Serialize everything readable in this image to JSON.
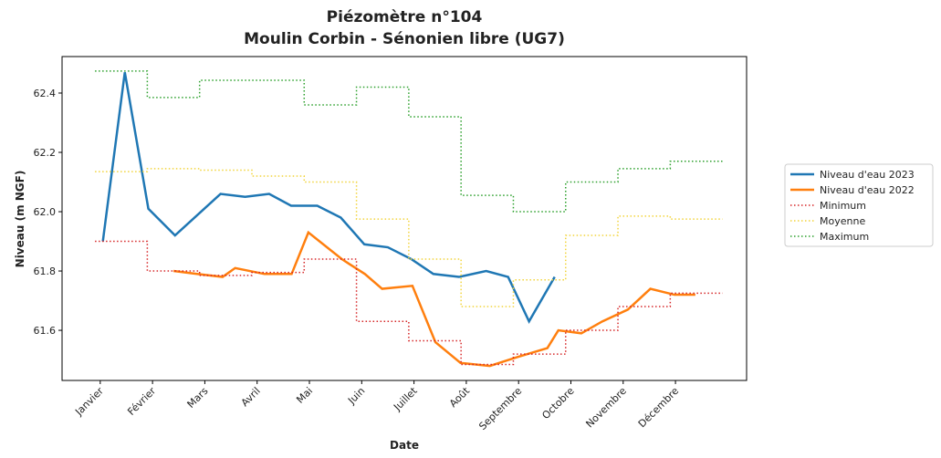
{
  "chart_data": {
    "type": "line",
    "title": "Piézomètre n°104",
    "subtitle": "Moulin Corbin - Sénonien libre (UG7)",
    "x_label": "Date",
    "y_label": "Niveau (m NGF)",
    "xlim": [
      -0.73,
      12.36
    ],
    "ylim": [
      61.431,
      62.523
    ],
    "xticks": [
      {
        "value": 0,
        "label": "Janvier"
      },
      {
        "value": 1,
        "label": "Février"
      },
      {
        "value": 2,
        "label": "Mars"
      },
      {
        "value": 3,
        "label": "Avril"
      },
      {
        "value": 4,
        "label": "Mai"
      },
      {
        "value": 5,
        "label": "Juin"
      },
      {
        "value": 6,
        "label": "Juillet"
      },
      {
        "value": 7,
        "label": "Août"
      },
      {
        "value": 8,
        "label": "Septembre"
      },
      {
        "value": 9,
        "label": "Octobre"
      },
      {
        "value": 10,
        "label": "Novembre"
      },
      {
        "value": 11,
        "label": "Décembre"
      }
    ],
    "yticks": [
      61.6,
      61.8,
      {
        "value": 62,
        "label": "62.0"
      },
      62.2,
      62.4
    ],
    "legend": "outside-right",
    "series": [
      {
        "name": "Niveau d'eau 2023",
        "color": "#1f77b4",
        "style": "solid",
        "step": false,
        "x": [
          0.05,
          0.47,
          0.92,
          1.43,
          2.3,
          2.77,
          3.23,
          3.65,
          4.15,
          4.6,
          5.05,
          5.5,
          5.95,
          6.37,
          6.86,
          7.38,
          7.8,
          8.2,
          8.69
        ],
        "values": [
          61.9,
          62.47,
          62.01,
          61.92,
          62.06,
          62.05,
          62.06,
          62.02,
          62.02,
          61.98,
          61.89,
          61.88,
          61.84,
          61.79,
          61.78,
          61.8,
          61.78,
          61.63,
          61.78
        ]
      },
      {
        "name": "Niveau d'eau 2022",
        "color": "#ff7f0e",
        "style": "solid",
        "step": false,
        "x": [
          1.4,
          1.85,
          2.34,
          2.58,
          3.14,
          3.66,
          3.98,
          4.62,
          5.06,
          5.39,
          5.97,
          6.41,
          6.89,
          7.45,
          7.98,
          8.55,
          8.76,
          9.2,
          9.6,
          10.09,
          10.52,
          10.98,
          11.38
        ],
        "values": [
          61.8,
          61.79,
          61.78,
          61.81,
          61.79,
          61.79,
          61.93,
          61.84,
          61.79,
          61.74,
          61.75,
          61.56,
          61.49,
          61.48,
          61.51,
          61.54,
          61.6,
          61.59,
          61.63,
          61.67,
          61.74,
          61.72,
          61.72
        ]
      },
      {
        "name": "Minimum",
        "color": "#d62728",
        "style": "dotted",
        "step": true,
        "x": [
          0,
          1,
          2,
          3,
          4,
          5,
          6,
          7,
          8,
          9,
          10,
          11
        ],
        "values": [
          61.9,
          61.8,
          61.785,
          61.795,
          61.84,
          61.63,
          61.565,
          61.485,
          61.52,
          61.6,
          61.68,
          61.725
        ]
      },
      {
        "name": "Moyenne",
        "color": "#f2d43a",
        "style": "dotted",
        "step": true,
        "x": [
          0,
          1,
          2,
          3,
          4,
          5,
          6,
          7,
          8,
          9,
          10,
          11
        ],
        "values": [
          62.135,
          62.145,
          62.14,
          62.12,
          62.1,
          61.975,
          61.84,
          61.68,
          61.77,
          61.92,
          61.985,
          61.975
        ]
      },
      {
        "name": "Maximum",
        "color": "#2ca02c",
        "style": "dotted",
        "step": true,
        "x": [
          0,
          1,
          2,
          3,
          4,
          5,
          6,
          7,
          8,
          9,
          10,
          11
        ],
        "values": [
          62.474,
          62.385,
          62.443,
          62.443,
          62.36,
          62.42,
          62.32,
          62.055,
          62.0,
          62.1,
          62.145,
          62.17
        ]
      }
    ]
  }
}
